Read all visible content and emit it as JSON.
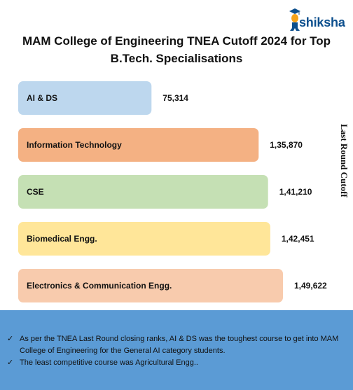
{
  "brand": {
    "name": "shiksha"
  },
  "title": {
    "line1": "MAM College of Engineering TNEA Cutoff 2024 for Top",
    "line2": "B.Tech. Specialisations"
  },
  "chart_data": {
    "type": "bar",
    "orientation": "horizontal",
    "categories": [
      "AI & DS",
      "Information Technology",
      "CSE",
      "Biomedical Engg.",
      "Electronics & Communication Engg."
    ],
    "values": [
      75314,
      135870,
      141210,
      142451,
      149622
    ],
    "value_labels": [
      "75,314",
      "1,35,870",
      "1,41,210",
      "1,42,451",
      "1,49,622"
    ],
    "bar_colors": [
      "#bdd7ee",
      "#f4b183",
      "#c5e0b4",
      "#ffe699",
      "#f8cbad"
    ],
    "ylabel": "Last Round Cutoff",
    "grid": false,
    "legend": "none"
  },
  "notes": {
    "items": [
      "As per the TNEA Last Round closing ranks, AI & DS was the toughest course to get into MAM College of Engineering for the General AI category students.",
      "The least competitive course was Agricultural Engg.."
    ]
  },
  "colors": {
    "panel": "#5b9bd5",
    "brand": "#0c4f8d",
    "brand_accent": "#f5a31a"
  }
}
